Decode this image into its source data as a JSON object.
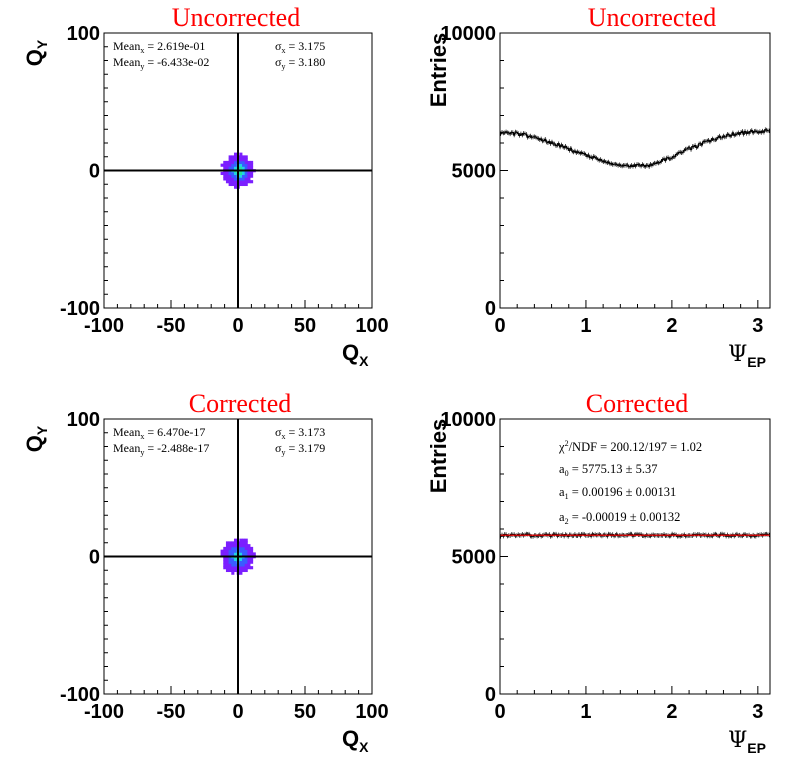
{
  "chart_data": [
    {
      "type": "heatmap",
      "title": "Uncorrected",
      "xlabel": "Q",
      "xlabel_sub": "X",
      "ylabel": "Q",
      "ylabel_sub": "Y",
      "xlim": [
        -100,
        100
      ],
      "ylim": [
        -100,
        100
      ],
      "xticks": [
        "-100",
        "-50",
        "0",
        "50",
        "100"
      ],
      "yticks": [
        "100",
        "0",
        "-100"
      ],
      "stats": {
        "mean_x_label": "Mean",
        "mean_x_sub": "x",
        "mean_x_value": " = 2.619e-01",
        "mean_y_label": "Mean",
        "mean_y_sub": "y",
        "mean_y_value": " = -6.433e-02",
        "sigma_x_label": "σ",
        "sigma_x_sub": "x",
        "sigma_x_value": " = 3.175",
        "sigma_y_label": "σ",
        "sigma_y_sub": "y",
        "sigma_y_value": " = 3.180"
      },
      "center": [
        0.26,
        -0.06
      ],
      "sigma": [
        3.175,
        3.18
      ],
      "colors": [
        "#7b1fff",
        "#3a5bff",
        "#21d2e6",
        "#25e39a",
        "#f3e24c"
      ]
    },
    {
      "type": "line",
      "title": "Uncorrected",
      "xlabel": "Ψ",
      "xlabel_sub": "EP",
      "ylabel": "Entries",
      "xlim": [
        0,
        3.1416
      ],
      "ylim": [
        0,
        10000
      ],
      "xticks": [
        "0",
        "1",
        "2",
        "3"
      ],
      "yticks": [
        "10000",
        "5000",
        "0"
      ],
      "x": [
        0.0,
        0.25,
        0.5,
        0.75,
        1.0,
        1.25,
        1.5,
        1.75,
        2.0,
        2.25,
        2.5,
        2.75,
        3.0,
        3.14
      ],
      "values": [
        6400,
        6320,
        6120,
        5850,
        5560,
        5300,
        5150,
        5200,
        5500,
        5850,
        6150,
        6350,
        6420,
        6450
      ],
      "noise": 60,
      "color": "#000000"
    },
    {
      "type": "heatmap",
      "title": "Corrected",
      "xlabel": "Q",
      "xlabel_sub": "X",
      "ylabel": "Q",
      "ylabel_sub": "Y",
      "xlim": [
        -100,
        100
      ],
      "ylim": [
        -100,
        100
      ],
      "xticks": [
        "-100",
        "-50",
        "0",
        "50",
        "100"
      ],
      "yticks": [
        "100",
        "0",
        "-100"
      ],
      "stats": {
        "mean_x_label": "Mean",
        "mean_x_sub": "x",
        "mean_x_value": " = 6.470e-17",
        "mean_y_label": "Mean",
        "mean_y_sub": "y",
        "mean_y_value": " = -2.488e-17",
        "sigma_x_label": "σ",
        "sigma_x_sub": "x",
        "sigma_x_value": " = 3.173",
        "sigma_y_label": "σ",
        "sigma_y_sub": "y",
        "sigma_y_value": " = 3.179"
      },
      "center": [
        0,
        0
      ],
      "sigma": [
        3.173,
        3.179
      ],
      "colors": [
        "#7b1fff",
        "#3a5bff",
        "#21d2e6",
        "#25e39a",
        "#f3e24c"
      ]
    },
    {
      "type": "line",
      "title": "Corrected",
      "xlabel": "Ψ",
      "xlabel_sub": "EP",
      "ylabel": "Entries",
      "xlim": [
        0,
        3.1416
      ],
      "ylim": [
        0,
        10000
      ],
      "xticks": [
        "0",
        "1",
        "2",
        "3"
      ],
      "yticks": [
        "10000",
        "5000",
        "0"
      ],
      "x": [
        0.0,
        3.14
      ],
      "values": [
        5775,
        5775
      ],
      "noise": 45,
      "color": "#000000",
      "fit_color": "#ff0000",
      "fit": {
        "chi2_label": "χ",
        "chi2_sup": "2",
        "chi2_text": "/NDF    = 200.12/197  =  1.02",
        "a0_label": "a",
        "a0_sub": "0",
        "a0_text": "    = 5775.13 ± 5.37",
        "a1_label": "a",
        "a1_sub": "1",
        "a1_text": "    = 0.00196 ± 0.00131",
        "a2_label": "a",
        "a2_sub": "2",
        "a2_text": "    = -0.00019 ± 0.00132"
      }
    }
  ]
}
